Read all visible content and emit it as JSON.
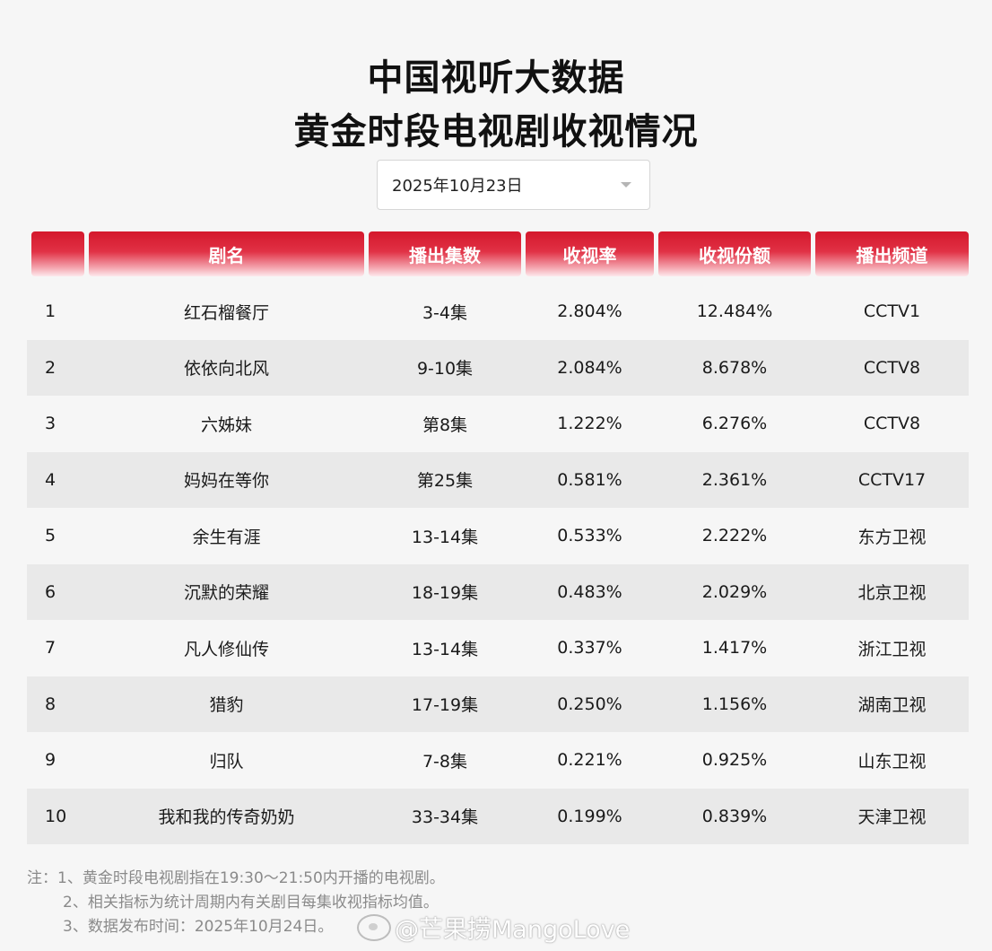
{
  "title": {
    "line1": "中国视听大数据",
    "line2": "黄金时段电视剧收视情况"
  },
  "date_select": {
    "value": "2025年10月23日",
    "icon": "chevron-down-icon"
  },
  "table": {
    "columns": [
      "",
      "剧名",
      "播出集数",
      "收视率",
      "收视份额",
      "播出频道"
    ],
    "rows": [
      [
        "1",
        "红石榴餐厅",
        "3-4集",
        "2.804%",
        "12.484%",
        "CCTV1"
      ],
      [
        "2",
        "依依向北风",
        "9-10集",
        "2.084%",
        "8.678%",
        "CCTV8"
      ],
      [
        "3",
        "六姊妹",
        "第8集",
        "1.222%",
        "6.276%",
        "CCTV8"
      ],
      [
        "4",
        "妈妈在等你",
        "第25集",
        "0.581%",
        "2.361%",
        "CCTV17"
      ],
      [
        "5",
        "余生有涯",
        "13-14集",
        "0.533%",
        "2.222%",
        "东方卫视"
      ],
      [
        "6",
        "沉默的荣耀",
        "18-19集",
        "0.483%",
        "2.029%",
        "北京卫视"
      ],
      [
        "7",
        "凡人修仙传",
        "13-14集",
        "0.337%",
        "1.417%",
        "浙江卫视"
      ],
      [
        "8",
        "猎豹",
        "17-19集",
        "0.250%",
        "1.156%",
        "湖南卫视"
      ],
      [
        "9",
        "归队",
        "7-8集",
        "0.221%",
        "0.925%",
        "山东卫视"
      ],
      [
        "10",
        "我和我的传奇奶奶",
        "33-34集",
        "0.199%",
        "0.839%",
        "天津卫视"
      ]
    ]
  },
  "notes": [
    "注：1、黄金时段电视剧指在19:30～21:50内开播的电视剧。",
    "2、相关指标为统计周期内有关剧目每集收视指标均值。",
    "3、数据发布时间：2025年10月24日。"
  ],
  "watermark": {
    "text": "@芒果捞MangoLove",
    "icon": "weibo-logo-icon"
  },
  "colors": {
    "header_red": "#d4182c",
    "background": "#f6f6f6",
    "row_alt": "#e9e9e9"
  }
}
